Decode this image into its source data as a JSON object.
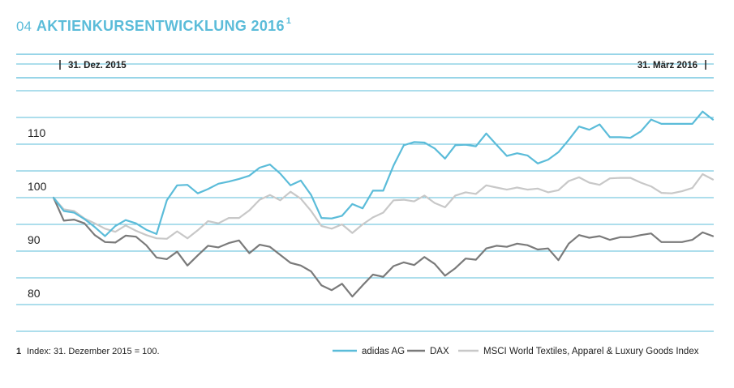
{
  "header": {
    "figure_number": "04",
    "title": "AKTIENKURSENTWICKLUNG 2016",
    "superscript": "1"
  },
  "chart_data": {
    "type": "line",
    "title": "AKTIENKURSENTWICKLUNG 2016",
    "start_label": "31. Dez. 2015",
    "end_label": "31. März 2016",
    "yticks": [
      110,
      100,
      90,
      80
    ],
    "ylim": [
      75,
      125
    ],
    "grid": true,
    "legend_position": "bottom-right",
    "footnote": {
      "number": "1",
      "text": "Index: 31. Dezember 2015 = 100."
    },
    "series": [
      {
        "name": "adidas AG",
        "color": "#5bbcd9",
        "values": [
          100,
          97.5,
          97.2,
          96,
          94.5,
          92.8,
          94.7,
          95.8,
          95.2,
          94,
          93.2,
          99.5,
          102.3,
          102.4,
          100.8,
          101.6,
          102.6,
          103,
          103.5,
          104.1,
          105.6,
          106.2,
          104.5,
          102.3,
          103.2,
          100.5,
          96.2,
          96.1,
          96.6,
          98.8,
          98,
          101.3,
          101.3,
          106,
          109.8,
          110.4,
          110.3,
          109.2,
          107.3,
          109.8,
          109.9,
          109.6,
          112,
          109.9,
          107.8,
          108.3,
          107.9,
          106.4,
          107.1,
          108.5,
          110.8,
          113.3,
          112.7,
          113.7,
          111.3,
          111.3,
          111.2,
          112.4,
          114.6,
          113.8,
          113.8,
          113.8,
          113.8,
          116.1,
          114.6
        ]
      },
      {
        "name": "DAX",
        "color": "#7a7a7a",
        "values": [
          100,
          95.7,
          95.9,
          95.2,
          93,
          91.7,
          91.6,
          92.9,
          92.7,
          91.1,
          88.8,
          88.5,
          89.9,
          87.3,
          89.2,
          91,
          90.7,
          91.5,
          92,
          89.6,
          91.2,
          90.8,
          89.3,
          87.8,
          87.3,
          86.2,
          83.6,
          82.7,
          83.9,
          81.5,
          83.6,
          85.6,
          85.2,
          87.2,
          87.9,
          87.4,
          88.9,
          87.6,
          85.4,
          86.8,
          88.6,
          88.4,
          90.5,
          91,
          90.8,
          91.4,
          91.1,
          90.3,
          90.5,
          88.3,
          91.4,
          93,
          92.5,
          92.8,
          92.1,
          92.6,
          92.6,
          93,
          93.3,
          91.7,
          91.7,
          91.7,
          92.1,
          93.5,
          92.8
        ]
      },
      {
        "name": "MSCI World Textiles, Apparel & Luxury Goods Index",
        "color": "#c8c8c8",
        "values": [
          100,
          97.8,
          97.5,
          96.1,
          95.2,
          94.2,
          93.6,
          94.8,
          93.8,
          93,
          92.4,
          92.3,
          93.7,
          92.4,
          93.9,
          95.6,
          95.2,
          96.2,
          96.2,
          97.6,
          99.6,
          100.5,
          99.5,
          101.1,
          99.8,
          97.5,
          94.7,
          94.2,
          95,
          93.4,
          95,
          96.3,
          97.2,
          99.5,
          99.6,
          99.3,
          100.4,
          99,
          98.2,
          100.4,
          101,
          100.7,
          102.3,
          101.9,
          101.5,
          101.9,
          101.5,
          101.7,
          101,
          101.4,
          103.1,
          103.8,
          102.8,
          102.4,
          103.6,
          103.7,
          103.7,
          102.8,
          102.1,
          100.9,
          100.8,
          101.2,
          101.8,
          104.4,
          103.4
        ]
      }
    ]
  }
}
